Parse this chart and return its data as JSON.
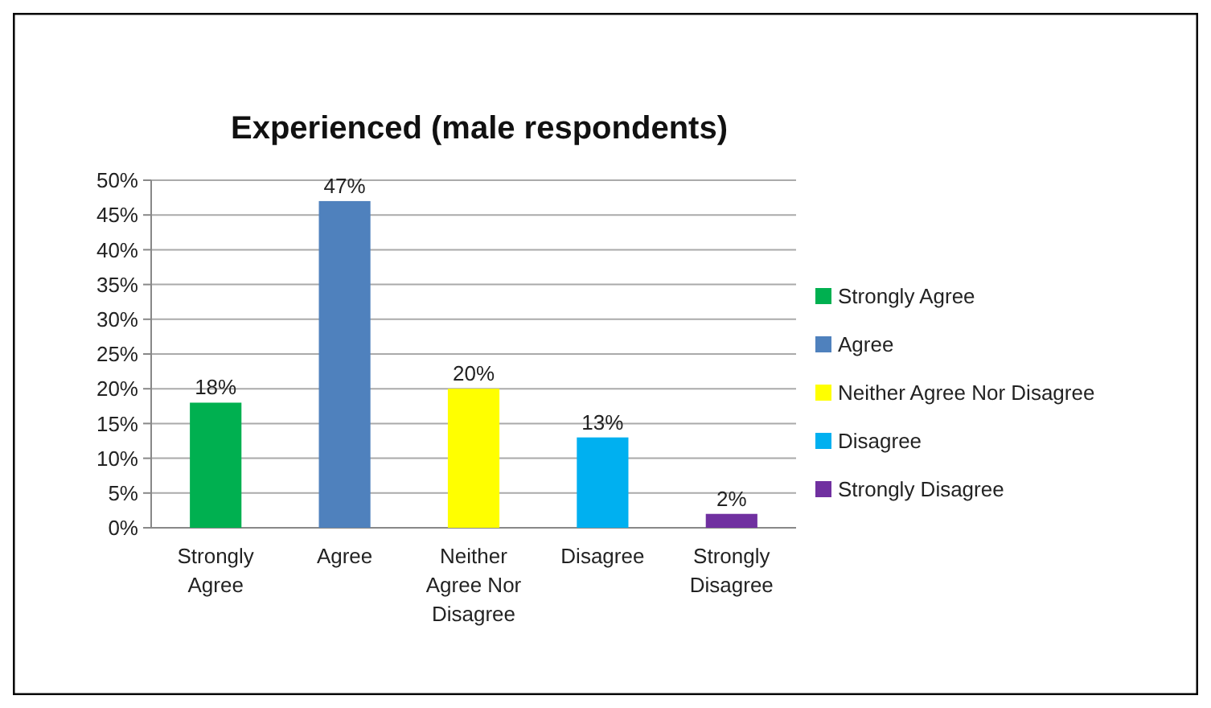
{
  "chart_data": {
    "type": "bar",
    "title": "Experienced (male respondents)",
    "categories": [
      "Strongly Agree",
      "Agree",
      "Neither Agree Nor Disagree",
      "Disagree",
      "Strongly Disagree"
    ],
    "series": [
      {
        "name": "Strongly Agree",
        "color": "#00b050",
        "values": [
          18,
          null,
          null,
          null,
          null
        ],
        "value_labels": [
          "18%",
          null,
          null,
          null,
          null
        ]
      },
      {
        "name": "Agree",
        "color": "#4f81bd",
        "values": [
          null,
          47,
          null,
          null,
          null
        ],
        "value_labels": [
          null,
          "47%",
          null,
          null,
          null
        ]
      },
      {
        "name": "Neither Agree Nor Disagree",
        "color": "#ffff00",
        "values": [
          null,
          null,
          20,
          null,
          null
        ],
        "value_labels": [
          null,
          null,
          "20%",
          null,
          null
        ]
      },
      {
        "name": "Disagree",
        "color": "#00b0f0",
        "values": [
          null,
          null,
          null,
          13,
          null
        ],
        "value_labels": [
          null,
          null,
          null,
          "13%",
          null
        ]
      },
      {
        "name": "Strongly Disagree",
        "color": "#7030a0",
        "values": [
          null,
          null,
          null,
          null,
          2
        ],
        "value_labels": [
          null,
          null,
          null,
          null,
          "2%"
        ]
      }
    ],
    "ylim": [
      0,
      50
    ],
    "yticks": [
      {
        "value": 0,
        "label": "0%"
      },
      {
        "value": 5,
        "label": "5%"
      },
      {
        "value": 10,
        "label": "10%"
      },
      {
        "value": 15,
        "label": "15%"
      },
      {
        "value": 20,
        "label": "20%"
      },
      {
        "value": 25,
        "label": "25%"
      },
      {
        "value": 30,
        "label": "30%"
      },
      {
        "value": 35,
        "label": "35%"
      },
      {
        "value": 40,
        "label": "40%"
      },
      {
        "value": 45,
        "label": "45%"
      },
      {
        "value": 50,
        "label": "50%"
      }
    ],
    "grid": "y",
    "legend": "right"
  }
}
